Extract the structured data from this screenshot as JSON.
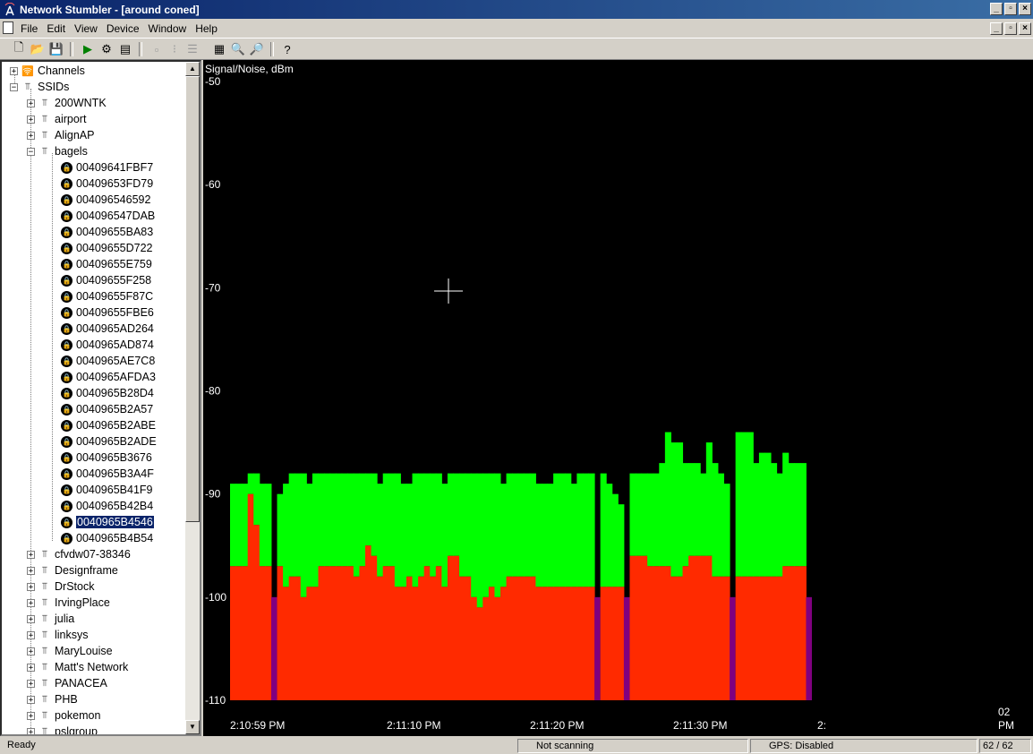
{
  "window": {
    "title": "Network Stumbler - [around coned]",
    "icon": "antenna-icon"
  },
  "menu": [
    "File",
    "Edit",
    "View",
    "Device",
    "Window",
    "Help"
  ],
  "toolbar": [
    "new-icon",
    "open-icon",
    "save-icon",
    "play-icon",
    "settings-icon",
    "properties-icon",
    "large-icons-icon",
    "small-icons-icon",
    "list-icon",
    "details-icon",
    "zoom-in-icon",
    "zoom-out-icon",
    "help-icon"
  ],
  "tree": {
    "channels": "Channels",
    "ssids": "SSIDs",
    "networks_before": [
      "200WNTK",
      "airport",
      "AlignAP",
      "bagels"
    ],
    "bagels_aps": [
      "00409641FBF7",
      "00409653FD79",
      "004096546592",
      "004096547DAB",
      "00409655BA83",
      "00409655D722",
      "00409655E759",
      "00409655F258",
      "00409655F87C",
      "00409655FBE6",
      "0040965AD264",
      "0040965AD874",
      "0040965AE7C8",
      "0040965AFDA3",
      "0040965B28D4",
      "0040965B2A57",
      "0040965B2ABE",
      "0040965B2ADE",
      "0040965B3676",
      "0040965B3A4F",
      "0040965B41F9",
      "0040965B42B4",
      "0040965B4546",
      "0040965B4B54"
    ],
    "selected_ap": "0040965B4546",
    "networks_after": [
      "cfvdw07-38346",
      "Designframe",
      "DrStock",
      "IrvingPlace",
      "julia",
      "linksys",
      "MaryLouise",
      "Matt's Network",
      "PANACEA",
      "PHB",
      "pokemon",
      "pslgroup"
    ]
  },
  "status": {
    "ready": "Ready",
    "scan": "Not scanning",
    "gps": "GPS: Disabled",
    "count": "62 / 62"
  },
  "colors": {
    "signal": "#00ff00",
    "noise": "#ff2a00",
    "no_data": "#800080",
    "background": "#000000"
  },
  "chart_data": {
    "type": "bar",
    "ylabel": "Signal/Noise, dBm",
    "ylim": [
      -110,
      -50
    ],
    "yticks": [
      -50,
      -60,
      -70,
      -80,
      -90,
      -100,
      -110
    ],
    "xticks": [
      "2:10:59 PM",
      "2:11:10 PM",
      "2:11:20 PM",
      "2:11:30 PM",
      "2:",
      "PM"
    ],
    "x_end_label": "02",
    "series": [
      {
        "name": "Signal",
        "values": [
          -89,
          -89,
          -89,
          -88,
          -88,
          -89,
          -89,
          -110,
          -90,
          -89,
          -88,
          -88,
          -88,
          -89,
          -88,
          -88,
          -88,
          -88,
          -88,
          -88,
          -88,
          -88,
          -88,
          -88,
          -88,
          -89,
          -88,
          -88,
          -88,
          -89,
          -89,
          -88,
          -88,
          -88,
          -88,
          -88,
          -89,
          -88,
          -88,
          -88,
          -88,
          -88,
          -88,
          -88,
          -88,
          -88,
          -89,
          -88,
          -88,
          -88,
          -88,
          -88,
          -89,
          -89,
          -89,
          -88,
          -88,
          -88,
          -89,
          -88,
          -88,
          -88,
          -110,
          -88,
          -89,
          -90,
          -91,
          -110,
          -88,
          -88,
          -88,
          -88,
          -88,
          -87,
          -84,
          -85,
          -85,
          -87,
          -87,
          -87,
          -88,
          -85,
          -87,
          -88,
          -89,
          -110,
          -84,
          -84,
          -84,
          -87,
          -86,
          -86,
          -87,
          -88,
          -86,
          -87,
          -87,
          -87,
          -110
        ],
        "_note": "see below"
      },
      {
        "name": "Noise",
        "values": [
          -97,
          -97,
          -97,
          -90,
          -93,
          -97,
          -97,
          -110,
          -97,
          -99,
          -98,
          -98,
          -100,
          -99,
          -99,
          -97,
          -97,
          -97,
          -97,
          -97,
          -97,
          -98,
          -97,
          -95,
          -96,
          -98,
          -97,
          -97,
          -99,
          -99,
          -98,
          -99,
          -98,
          -97,
          -98,
          -97,
          -99,
          -96,
          -96,
          -98,
          -98,
          -100,
          -101,
          -100,
          -99,
          -100,
          -99,
          -98,
          -98,
          -98,
          -98,
          -98,
          -99,
          -99,
          -99,
          -99,
          -99,
          -99,
          -99,
          -99,
          -99,
          -99,
          -110,
          -99,
          -99,
          -99,
          -99,
          -110,
          -96,
          -96,
          -96,
          -97,
          -97,
          -97,
          -97,
          -98,
          -98,
          -97,
          -96,
          -96,
          -96,
          -96,
          -98,
          -98,
          -98,
          -110,
          -98,
          -98,
          -98,
          -98,
          -98,
          -98,
          -98,
          -98,
          -97,
          -97,
          -97,
          -97,
          -110
        ]
      }
    ],
    "grid": false,
    "legend": "none"
  }
}
